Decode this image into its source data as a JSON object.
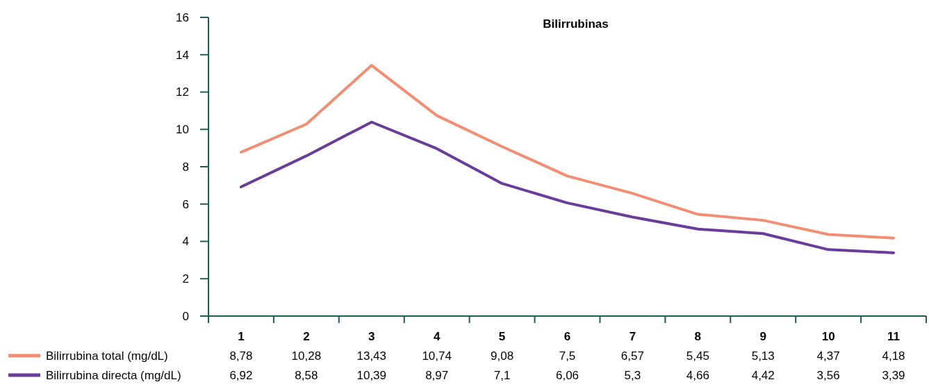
{
  "chart_data": {
    "type": "line",
    "title": "Bilirrubinas",
    "categories": [
      "1",
      "2",
      "3",
      "4",
      "5",
      "6",
      "7",
      "8",
      "9",
      "10",
      "11"
    ],
    "ylim": [
      0,
      16
    ],
    "yticks": [
      0,
      2,
      4,
      6,
      8,
      10,
      12,
      14,
      16
    ],
    "grid": false,
    "legend": "bottom",
    "marker": "none",
    "line_style": "solid",
    "series": [
      {
        "name": "Bilirrubina total (mg/dL)",
        "color": "#f28e74",
        "values": [
          8.78,
          10.28,
          13.43,
          10.74,
          9.08,
          7.5,
          6.57,
          5.45,
          5.13,
          4.37,
          4.18
        ],
        "value_labels": [
          "8,78",
          "10,28",
          "13,43",
          "10,74",
          "9,08",
          "7,5",
          "6,57",
          "5,45",
          "5,13",
          "4,37",
          "4,18"
        ]
      },
      {
        "name": "Bilirrubina directa (mg/dL)",
        "color": "#6a3d9a",
        "values": [
          6.92,
          8.58,
          10.39,
          8.97,
          7.1,
          6.06,
          5.3,
          4.66,
          4.42,
          3.56,
          3.39
        ],
        "value_labels": [
          "6,92",
          "8,58",
          "10,39",
          "8,97",
          "7,1",
          "6,06",
          "5,3",
          "4,66",
          "4,42",
          "3,56",
          "3,39"
        ]
      }
    ]
  }
}
